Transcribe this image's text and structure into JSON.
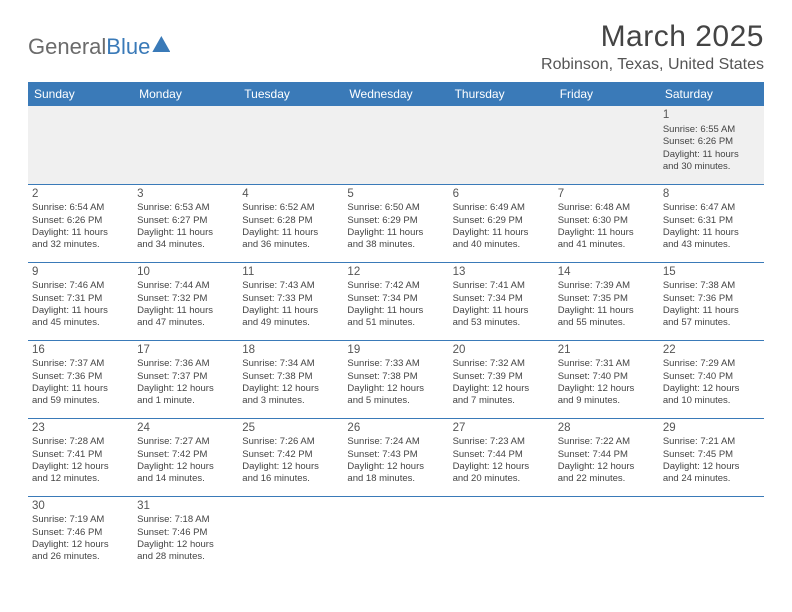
{
  "logo": {
    "text1": "General",
    "text2": "Blue"
  },
  "title": "March 2025",
  "location": "Robinson, Texas, United States",
  "columns": [
    "Sunday",
    "Monday",
    "Tuesday",
    "Wednesday",
    "Thursday",
    "Friday",
    "Saturday"
  ],
  "colors": {
    "header_bg": "#3a7ab8",
    "header_text": "#ffffff",
    "border": "#3a7ab8",
    "body_text": "#444444",
    "empty_bg": "#f0f0f0",
    "page_bg": "#ffffff"
  },
  "weeks": [
    [
      null,
      null,
      null,
      null,
      null,
      null,
      {
        "n": "1",
        "sr": "Sunrise: 6:55 AM",
        "ss": "Sunset: 6:26 PM",
        "d1": "Daylight: 11 hours",
        "d2": "and 30 minutes."
      }
    ],
    [
      {
        "n": "2",
        "sr": "Sunrise: 6:54 AM",
        "ss": "Sunset: 6:26 PM",
        "d1": "Daylight: 11 hours",
        "d2": "and 32 minutes."
      },
      {
        "n": "3",
        "sr": "Sunrise: 6:53 AM",
        "ss": "Sunset: 6:27 PM",
        "d1": "Daylight: 11 hours",
        "d2": "and 34 minutes."
      },
      {
        "n": "4",
        "sr": "Sunrise: 6:52 AM",
        "ss": "Sunset: 6:28 PM",
        "d1": "Daylight: 11 hours",
        "d2": "and 36 minutes."
      },
      {
        "n": "5",
        "sr": "Sunrise: 6:50 AM",
        "ss": "Sunset: 6:29 PM",
        "d1": "Daylight: 11 hours",
        "d2": "and 38 minutes."
      },
      {
        "n": "6",
        "sr": "Sunrise: 6:49 AM",
        "ss": "Sunset: 6:29 PM",
        "d1": "Daylight: 11 hours",
        "d2": "and 40 minutes."
      },
      {
        "n": "7",
        "sr": "Sunrise: 6:48 AM",
        "ss": "Sunset: 6:30 PM",
        "d1": "Daylight: 11 hours",
        "d2": "and 41 minutes."
      },
      {
        "n": "8",
        "sr": "Sunrise: 6:47 AM",
        "ss": "Sunset: 6:31 PM",
        "d1": "Daylight: 11 hours",
        "d2": "and 43 minutes."
      }
    ],
    [
      {
        "n": "9",
        "sr": "Sunrise: 7:46 AM",
        "ss": "Sunset: 7:31 PM",
        "d1": "Daylight: 11 hours",
        "d2": "and 45 minutes."
      },
      {
        "n": "10",
        "sr": "Sunrise: 7:44 AM",
        "ss": "Sunset: 7:32 PM",
        "d1": "Daylight: 11 hours",
        "d2": "and 47 minutes."
      },
      {
        "n": "11",
        "sr": "Sunrise: 7:43 AM",
        "ss": "Sunset: 7:33 PM",
        "d1": "Daylight: 11 hours",
        "d2": "and 49 minutes."
      },
      {
        "n": "12",
        "sr": "Sunrise: 7:42 AM",
        "ss": "Sunset: 7:34 PM",
        "d1": "Daylight: 11 hours",
        "d2": "and 51 minutes."
      },
      {
        "n": "13",
        "sr": "Sunrise: 7:41 AM",
        "ss": "Sunset: 7:34 PM",
        "d1": "Daylight: 11 hours",
        "d2": "and 53 minutes."
      },
      {
        "n": "14",
        "sr": "Sunrise: 7:39 AM",
        "ss": "Sunset: 7:35 PM",
        "d1": "Daylight: 11 hours",
        "d2": "and 55 minutes."
      },
      {
        "n": "15",
        "sr": "Sunrise: 7:38 AM",
        "ss": "Sunset: 7:36 PM",
        "d1": "Daylight: 11 hours",
        "d2": "and 57 minutes."
      }
    ],
    [
      {
        "n": "16",
        "sr": "Sunrise: 7:37 AM",
        "ss": "Sunset: 7:36 PM",
        "d1": "Daylight: 11 hours",
        "d2": "and 59 minutes."
      },
      {
        "n": "17",
        "sr": "Sunrise: 7:36 AM",
        "ss": "Sunset: 7:37 PM",
        "d1": "Daylight: 12 hours",
        "d2": "and 1 minute."
      },
      {
        "n": "18",
        "sr": "Sunrise: 7:34 AM",
        "ss": "Sunset: 7:38 PM",
        "d1": "Daylight: 12 hours",
        "d2": "and 3 minutes."
      },
      {
        "n": "19",
        "sr": "Sunrise: 7:33 AM",
        "ss": "Sunset: 7:38 PM",
        "d1": "Daylight: 12 hours",
        "d2": "and 5 minutes."
      },
      {
        "n": "20",
        "sr": "Sunrise: 7:32 AM",
        "ss": "Sunset: 7:39 PM",
        "d1": "Daylight: 12 hours",
        "d2": "and 7 minutes."
      },
      {
        "n": "21",
        "sr": "Sunrise: 7:31 AM",
        "ss": "Sunset: 7:40 PM",
        "d1": "Daylight: 12 hours",
        "d2": "and 9 minutes."
      },
      {
        "n": "22",
        "sr": "Sunrise: 7:29 AM",
        "ss": "Sunset: 7:40 PM",
        "d1": "Daylight: 12 hours",
        "d2": "and 10 minutes."
      }
    ],
    [
      {
        "n": "23",
        "sr": "Sunrise: 7:28 AM",
        "ss": "Sunset: 7:41 PM",
        "d1": "Daylight: 12 hours",
        "d2": "and 12 minutes."
      },
      {
        "n": "24",
        "sr": "Sunrise: 7:27 AM",
        "ss": "Sunset: 7:42 PM",
        "d1": "Daylight: 12 hours",
        "d2": "and 14 minutes."
      },
      {
        "n": "25",
        "sr": "Sunrise: 7:26 AM",
        "ss": "Sunset: 7:42 PM",
        "d1": "Daylight: 12 hours",
        "d2": "and 16 minutes."
      },
      {
        "n": "26",
        "sr": "Sunrise: 7:24 AM",
        "ss": "Sunset: 7:43 PM",
        "d1": "Daylight: 12 hours",
        "d2": "and 18 minutes."
      },
      {
        "n": "27",
        "sr": "Sunrise: 7:23 AM",
        "ss": "Sunset: 7:44 PM",
        "d1": "Daylight: 12 hours",
        "d2": "and 20 minutes."
      },
      {
        "n": "28",
        "sr": "Sunrise: 7:22 AM",
        "ss": "Sunset: 7:44 PM",
        "d1": "Daylight: 12 hours",
        "d2": "and 22 minutes."
      },
      {
        "n": "29",
        "sr": "Sunrise: 7:21 AM",
        "ss": "Sunset: 7:45 PM",
        "d1": "Daylight: 12 hours",
        "d2": "and 24 minutes."
      }
    ],
    [
      {
        "n": "30",
        "sr": "Sunrise: 7:19 AM",
        "ss": "Sunset: 7:46 PM",
        "d1": "Daylight: 12 hours",
        "d2": "and 26 minutes."
      },
      {
        "n": "31",
        "sr": "Sunrise: 7:18 AM",
        "ss": "Sunset: 7:46 PM",
        "d1": "Daylight: 12 hours",
        "d2": "and 28 minutes."
      },
      null,
      null,
      null,
      null,
      null
    ]
  ]
}
